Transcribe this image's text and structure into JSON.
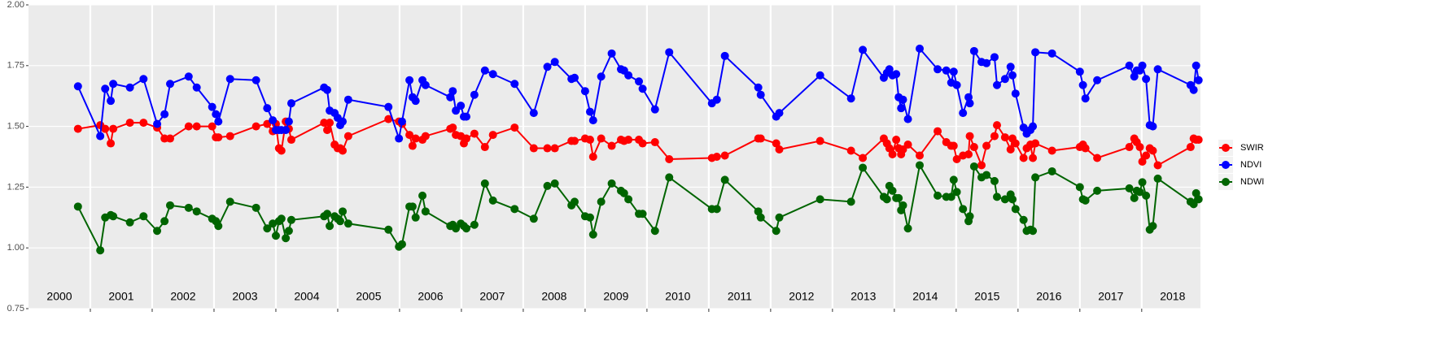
{
  "chart_data": {
    "type": "line",
    "x": [
      2000.8,
      2001.16,
      2001.24,
      2001.33,
      2001.37,
      2001.64,
      2001.86,
      2002.08,
      2002.2,
      2002.29,
      2002.59,
      2002.72,
      2002.97,
      2003.03,
      2003.07,
      2003.26,
      2003.68,
      2003.86,
      2003.95,
      2004.0,
      2004.05,
      2004.09,
      2004.16,
      2004.21,
      2004.25,
      2004.78,
      2004.83,
      2004.87,
      2004.95,
      2005.0,
      2005.04,
      2005.08,
      2005.17,
      2005.82,
      2005.99,
      2006.04,
      2006.16,
      2006.21,
      2006.26,
      2006.37,
      2006.42,
      2006.82,
      2006.86,
      2006.91,
      2006.99,
      2007.04,
      2007.08,
      2007.21,
      2007.38,
      2007.51,
      2007.86,
      2008.17,
      2008.39,
      2008.51,
      2008.78,
      2008.83,
      2009.0,
      2009.08,
      2009.13,
      2009.26,
      2009.43,
      2009.58,
      2009.63,
      2009.7,
      2009.87,
      2009.93,
      2010.13,
      2010.36,
      2011.05,
      2011.13,
      2011.26,
      2011.8,
      2011.84,
      2012.09,
      2012.14,
      2012.8,
      2013.3,
      2013.49,
      2013.83,
      2013.88,
      2013.92,
      2013.97,
      2014.03,
      2014.07,
      2014.11,
      2014.14,
      2014.22,
      2014.41,
      2014.7,
      2014.84,
      2014.92,
      2014.96,
      2015.01,
      2015.11,
      2015.2,
      2015.22,
      2015.29,
      2015.41,
      2015.49,
      2015.62,
      2015.66,
      2015.79,
      2015.88,
      2015.91,
      2015.96,
      2016.09,
      2016.14,
      2016.2,
      2016.24,
      2016.28,
      2016.55,
      2017.0,
      2017.05,
      2017.09,
      2017.28,
      2017.8,
      2017.88,
      2017.92,
      2017.97,
      2018.01,
      2018.07,
      2018.13,
      2018.18,
      2018.26,
      2018.79,
      2018.84,
      2018.88,
      2018.92
    ],
    "series": [
      {
        "name": "SWIR",
        "color": "#ff0000",
        "values": [
          1.49,
          1.505,
          1.49,
          1.43,
          1.49,
          1.515,
          1.515,
          1.495,
          1.45,
          1.45,
          1.5,
          1.5,
          1.5,
          1.455,
          1.455,
          1.46,
          1.5,
          1.51,
          1.48,
          1.51,
          1.41,
          1.4,
          1.52,
          1.49,
          1.445,
          1.515,
          1.485,
          1.515,
          1.425,
          1.41,
          1.41,
          1.4,
          1.46,
          1.53,
          1.52,
          1.51,
          1.465,
          1.42,
          1.45,
          1.445,
          1.46,
          1.49,
          1.495,
          1.465,
          1.46,
          1.43,
          1.45,
          1.47,
          1.415,
          1.465,
          1.495,
          1.41,
          1.41,
          1.41,
          1.44,
          1.44,
          1.45,
          1.445,
          1.375,
          1.45,
          1.42,
          1.445,
          1.44,
          1.445,
          1.445,
          1.43,
          1.435,
          1.365,
          1.37,
          1.375,
          1.38,
          1.45,
          1.45,
          1.43,
          1.405,
          1.44,
          1.4,
          1.37,
          1.45,
          1.43,
          1.41,
          1.385,
          1.445,
          1.41,
          1.385,
          1.405,
          1.425,
          1.38,
          1.48,
          1.435,
          1.42,
          1.42,
          1.365,
          1.38,
          1.385,
          1.46,
          1.415,
          1.34,
          1.42,
          1.46,
          1.505,
          1.455,
          1.405,
          1.45,
          1.43,
          1.37,
          1.41,
          1.425,
          1.37,
          1.43,
          1.4,
          1.415,
          1.425,
          1.41,
          1.37,
          1.415,
          1.45,
          1.435,
          1.415,
          1.355,
          1.38,
          1.41,
          1.4,
          1.34,
          1.415,
          1.45,
          1.445,
          1.445
        ]
      },
      {
        "name": "NDVI",
        "color": "#0000ff",
        "values": [
          1.665,
          1.46,
          1.655,
          1.605,
          1.675,
          1.66,
          1.695,
          1.51,
          1.55,
          1.675,
          1.705,
          1.66,
          1.58,
          1.55,
          1.52,
          1.695,
          1.69,
          1.575,
          1.525,
          1.485,
          1.485,
          1.485,
          1.485,
          1.52,
          1.595,
          1.66,
          1.65,
          1.565,
          1.555,
          1.535,
          1.505,
          1.52,
          1.61,
          1.58,
          1.45,
          1.52,
          1.69,
          1.62,
          1.605,
          1.69,
          1.67,
          1.62,
          1.645,
          1.565,
          1.585,
          1.54,
          1.54,
          1.63,
          1.73,
          1.715,
          1.675,
          1.555,
          1.745,
          1.765,
          1.695,
          1.7,
          1.645,
          1.56,
          1.525,
          1.705,
          1.8,
          1.735,
          1.73,
          1.71,
          1.685,
          1.655,
          1.57,
          1.805,
          1.595,
          1.61,
          1.79,
          1.66,
          1.63,
          1.54,
          1.555,
          1.71,
          1.615,
          1.815,
          1.7,
          1.72,
          1.735,
          1.71,
          1.715,
          1.62,
          1.575,
          1.61,
          1.53,
          1.82,
          1.735,
          1.73,
          1.68,
          1.725,
          1.67,
          1.555,
          1.62,
          1.595,
          1.81,
          1.765,
          1.76,
          1.785,
          1.67,
          1.695,
          1.745,
          1.71,
          1.635,
          1.495,
          1.47,
          1.485,
          1.5,
          1.805,
          1.8,
          1.725,
          1.67,
          1.615,
          1.69,
          1.75,
          1.705,
          1.73,
          1.73,
          1.75,
          1.695,
          1.505,
          1.5,
          1.735,
          1.67,
          1.65,
          1.75,
          1.69
        ]
      },
      {
        "name": "NDWI",
        "color": "#006400",
        "values": [
          1.17,
          0.99,
          1.125,
          1.135,
          1.13,
          1.105,
          1.13,
          1.07,
          1.11,
          1.175,
          1.165,
          1.15,
          1.12,
          1.11,
          1.09,
          1.19,
          1.165,
          1.08,
          1.1,
          1.05,
          1.11,
          1.12,
          1.04,
          1.07,
          1.115,
          1.13,
          1.14,
          1.09,
          1.13,
          1.12,
          1.11,
          1.15,
          1.1,
          1.075,
          1.005,
          1.015,
          1.17,
          1.17,
          1.125,
          1.215,
          1.15,
          1.09,
          1.095,
          1.08,
          1.1,
          1.09,
          1.08,
          1.095,
          1.265,
          1.195,
          1.16,
          1.12,
          1.255,
          1.265,
          1.175,
          1.19,
          1.13,
          1.125,
          1.055,
          1.19,
          1.265,
          1.235,
          1.225,
          1.2,
          1.14,
          1.14,
          1.07,
          1.29,
          1.16,
          1.16,
          1.28,
          1.15,
          1.125,
          1.07,
          1.125,
          1.2,
          1.19,
          1.33,
          1.21,
          1.2,
          1.255,
          1.235,
          1.205,
          1.205,
          1.155,
          1.175,
          1.08,
          1.34,
          1.215,
          1.21,
          1.21,
          1.28,
          1.23,
          1.16,
          1.11,
          1.13,
          1.335,
          1.29,
          1.3,
          1.275,
          1.21,
          1.2,
          1.22,
          1.2,
          1.16,
          1.115,
          1.07,
          1.075,
          1.07,
          1.29,
          1.315,
          1.25,
          1.2,
          1.195,
          1.235,
          1.245,
          1.205,
          1.235,
          1.23,
          1.27,
          1.215,
          1.075,
          1.09,
          1.285,
          1.19,
          1.18,
          1.225,
          1.2
        ]
      }
    ],
    "xlim": [
      2000,
      2018.95
    ],
    "xticks": [
      2001,
      2002,
      2003,
      2004,
      2005,
      2006,
      2007,
      2008,
      2009,
      2010,
      2011,
      2012,
      2013,
      2014,
      2015,
      2016,
      2017,
      2018
    ],
    "year_labels": [
      {
        "value": 2000.5,
        "label": "2000"
      },
      {
        "value": 2001.5,
        "label": "2001"
      },
      {
        "value": 2002.5,
        "label": "2002"
      },
      {
        "value": 2003.5,
        "label": "2003"
      },
      {
        "value": 2004.5,
        "label": "2004"
      },
      {
        "value": 2005.5,
        "label": "2005"
      },
      {
        "value": 2006.5,
        "label": "2006"
      },
      {
        "value": 2007.5,
        "label": "2007"
      },
      {
        "value": 2008.5,
        "label": "2008"
      },
      {
        "value": 2009.5,
        "label": "2009"
      },
      {
        "value": 2010.5,
        "label": "2010"
      },
      {
        "value": 2011.5,
        "label": "2011"
      },
      {
        "value": 2012.5,
        "label": "2012"
      },
      {
        "value": 2013.5,
        "label": "2013"
      },
      {
        "value": 2014.5,
        "label": "2014"
      },
      {
        "value": 2015.5,
        "label": "2015"
      },
      {
        "value": 2016.5,
        "label": "2016"
      },
      {
        "value": 2017.5,
        "label": "2017"
      },
      {
        "value": 2018.5,
        "label": "2018"
      }
    ],
    "ylim": [
      0.75,
      2.0
    ],
    "yticks": [
      0.75,
      {
        "value": 1.0,
        "label": "1.00"
      },
      1.25,
      {
        "value": 1.5,
        "label": "1.50"
      },
      1.75,
      {
        "value": 2.0,
        "label": "2.00"
      }
    ],
    "grid": true,
    "legend": "right"
  }
}
